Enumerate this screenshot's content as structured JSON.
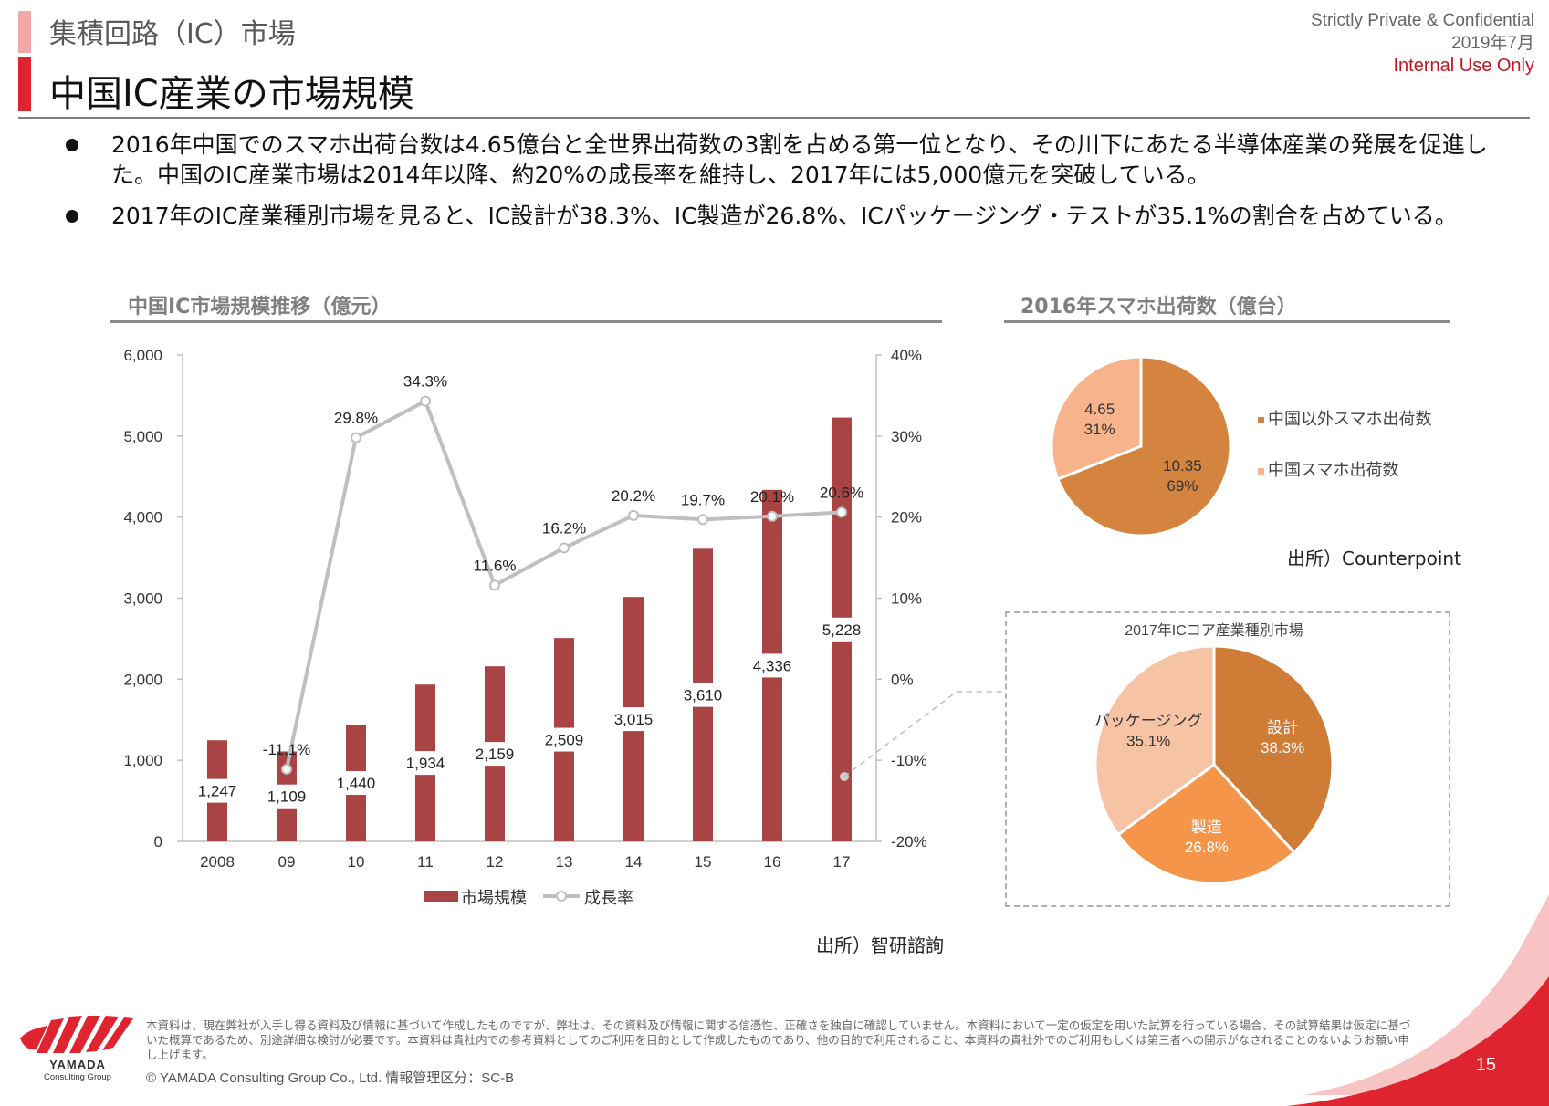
{
  "header": {
    "section_title": "集積回路（IC）市場",
    "page_title": "中国IC産業の市場規模",
    "confidential": "Strictly Private & Confidential",
    "date": "2019年7月",
    "internal": "Internal Use Only"
  },
  "bullets": [
    "2016年中国でのスマホ出荷台数は4.65億台と全世界出荷数の3割を占める第一位となり、その川下にあたる半導体産業の発展を促進した。中国のIC産業市場は2014年以降、約20%の成長率を維持し、2017年には5,000億元を突破している。",
    "2017年のIC産業種別市場を見ると、IC設計が38.3%、IC製造が26.8%、ICパッケージング・テストが35.1%の割合を占めている。"
  ],
  "colors": {
    "bar": "#a94444",
    "line": "#bfbfbf",
    "pie_dark": "#d4843e",
    "pie_light": "#f7b48c",
    "design": "#cf7c37",
    "manufacturing": "#f4954a",
    "packaging": "#f6c3a5",
    "accent_red": "#e0242f"
  },
  "chart_data": [
    {
      "type": "bar",
      "title": "中国IC市場規模推移（億元）",
      "categories": [
        "2008",
        "09",
        "10",
        "11",
        "12",
        "13",
        "14",
        "15",
        "16",
        "17"
      ],
      "series": [
        {
          "name": "市場規模",
          "axis": "left",
          "values": [
            1247,
            1109,
            1440,
            1934,
            2159,
            2509,
            3015,
            3610,
            4336,
            5228
          ],
          "labels": [
            "1,247",
            "1,109",
            "1,440",
            "1,934",
            "2,159",
            "2,509",
            "3,015",
            "3,610",
            "4,336",
            "5,228"
          ]
        },
        {
          "name": "成長率",
          "type": "line",
          "axis": "right",
          "values": [
            null,
            -11.1,
            29.8,
            34.3,
            11.6,
            16.2,
            20.2,
            19.7,
            20.1,
            20.6
          ],
          "labels": [
            "",
            "-11.1%",
            "29.8%",
            "34.3%",
            "11.6%",
            "16.2%",
            "20.2%",
            "19.7%",
            "20.1%",
            "20.6%"
          ]
        }
      ],
      "ylim": [
        0,
        6000
      ],
      "y_ticks": [
        "0",
        "1,000",
        "2,000",
        "3,000",
        "4,000",
        "5,000",
        "6,000"
      ],
      "y2lim": [
        -20,
        40
      ],
      "y2_ticks": [
        "-20%",
        "-10%",
        "0%",
        "10%",
        "20%",
        "30%",
        "40%"
      ],
      "legend_position": "bottom",
      "source": "出所）智研諮詢"
    },
    {
      "type": "pie",
      "title": "2016年スマホ出荷数（億台）",
      "slices": [
        {
          "name": "中国以外スマホ出荷数",
          "value": 10.35,
          "value_label": "10.35",
          "percent": "69%"
        },
        {
          "name": "中国スマホ出荷数",
          "value": 4.65,
          "value_label": "4.65",
          "percent": "31%"
        }
      ],
      "legend_position": "right",
      "source": "出所）Counterpoint"
    },
    {
      "type": "pie",
      "title": "2017年ICコア産業種別市場",
      "slices": [
        {
          "name": "設計",
          "value": 38.3,
          "percent": "38.3%"
        },
        {
          "name": "製造",
          "value": 26.8,
          "percent": "26.8%"
        },
        {
          "name": "パッケージング",
          "value": 35.1,
          "percent": "35.1%"
        }
      ]
    }
  ],
  "footer": {
    "disclaimer": "本資料は、現在弊社が入手し得る資料及び情報に基づいて作成したものですが、弊社は、その資料及び情報に関する信憑性、正確さを独自に確認していません。本資料において一定の仮定を用いた試算を行っている場合、その試算結果は仮定に基づいた概算であるため、別途詳細な検討が必要です。本資料は貴社内での参考資料としてのご利用を目的として作成したものであり、他の目的で利用されること、本資料の貴社外でのご利用もしくは第三者への開示がなされることのないようお願い申し上げます。",
    "copyright": "©  YAMADA Consulting  Group  Co., Ltd.     情報管理区分：SC-B",
    "logo_name": "YAMADA",
    "logo_sub": "Consulting Group",
    "page_number": "15"
  }
}
